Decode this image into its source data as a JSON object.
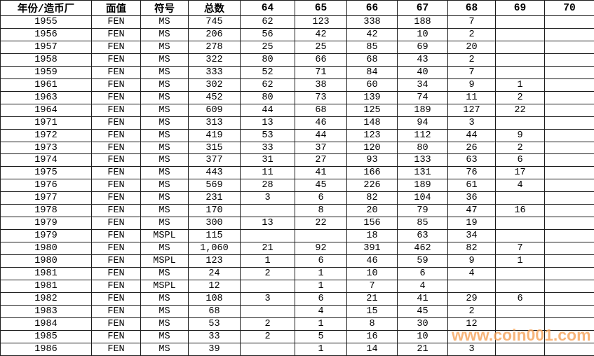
{
  "table": {
    "headers": [
      "年份/造币厂",
      "面值",
      "符号",
      "总数",
      "64",
      "65",
      "66",
      "67",
      "68",
      "69",
      "70"
    ],
    "rows": [
      [
        "1955",
        "FEN",
        "MS",
        "745",
        "62",
        "123",
        "338",
        "188",
        "7",
        "",
        ""
      ],
      [
        "1956",
        "FEN",
        "MS",
        "206",
        "56",
        "42",
        "42",
        "10",
        "2",
        "",
        ""
      ],
      [
        "1957",
        "FEN",
        "MS",
        "278",
        "25",
        "25",
        "85",
        "69",
        "20",
        "",
        ""
      ],
      [
        "1958",
        "FEN",
        "MS",
        "322",
        "80",
        "66",
        "68",
        "43",
        "2",
        "",
        ""
      ],
      [
        "1959",
        "FEN",
        "MS",
        "333",
        "52",
        "71",
        "84",
        "40",
        "7",
        "",
        ""
      ],
      [
        "1961",
        "FEN",
        "MS",
        "302",
        "62",
        "38",
        "60",
        "34",
        "9",
        "1",
        ""
      ],
      [
        "1963",
        "FEN",
        "MS",
        "452",
        "80",
        "73",
        "139",
        "74",
        "11",
        "2",
        ""
      ],
      [
        "1964",
        "FEN",
        "MS",
        "609",
        "44",
        "68",
        "125",
        "189",
        "127",
        "22",
        ""
      ],
      [
        "1971",
        "FEN",
        "MS",
        "313",
        "13",
        "46",
        "148",
        "94",
        "3",
        "",
        ""
      ],
      [
        "1972",
        "FEN",
        "MS",
        "419",
        "53",
        "44",
        "123",
        "112",
        "44",
        "9",
        ""
      ],
      [
        "1973",
        "FEN",
        "MS",
        "315",
        "33",
        "37",
        "120",
        "80",
        "26",
        "2",
        ""
      ],
      [
        "1974",
        "FEN",
        "MS",
        "377",
        "31",
        "27",
        "93",
        "133",
        "63",
        "6",
        ""
      ],
      [
        "1975",
        "FEN",
        "MS",
        "443",
        "11",
        "41",
        "166",
        "131",
        "76",
        "17",
        ""
      ],
      [
        "1976",
        "FEN",
        "MS",
        "569",
        "28",
        "45",
        "226",
        "189",
        "61",
        "4",
        ""
      ],
      [
        "1977",
        "FEN",
        "MS",
        "231",
        "3",
        "6",
        "82",
        "104",
        "36",
        "",
        ""
      ],
      [
        "1978",
        "FEN",
        "MS",
        "170",
        "",
        "8",
        "20",
        "79",
        "47",
        "16",
        ""
      ],
      [
        "1979",
        "FEN",
        "MS",
        "300",
        "13",
        "22",
        "156",
        "85",
        "19",
        "",
        ""
      ],
      [
        "1979",
        "FEN",
        "MSPL",
        "115",
        "",
        "",
        "18",
        "63",
        "34",
        "",
        ""
      ],
      [
        "1980",
        "FEN",
        "MS",
        "1,060",
        "21",
        "92",
        "391",
        "462",
        "82",
        "7",
        ""
      ],
      [
        "1980",
        "FEN",
        "MSPL",
        "123",
        "1",
        "6",
        "46",
        "59",
        "9",
        "1",
        ""
      ],
      [
        "1981",
        "FEN",
        "MS",
        "24",
        "2",
        "1",
        "10",
        "6",
        "4",
        "",
        ""
      ],
      [
        "1981",
        "FEN",
        "MSPL",
        "12",
        "",
        "1",
        "7",
        "4",
        "",
        "",
        ""
      ],
      [
        "1982",
        "FEN",
        "MS",
        "108",
        "3",
        "6",
        "21",
        "41",
        "29",
        "6",
        ""
      ],
      [
        "1983",
        "FEN",
        "MS",
        "68",
        "",
        "4",
        "15",
        "45",
        "2",
        "",
        ""
      ],
      [
        "1984",
        "FEN",
        "MS",
        "53",
        "2",
        "1",
        "8",
        "30",
        "12",
        "",
        ""
      ],
      [
        "1985",
        "FEN",
        "MS",
        "33",
        "2",
        "5",
        "16",
        "10",
        "",
        "",
        ""
      ],
      [
        "1986",
        "FEN",
        "MS",
        "39",
        "",
        "1",
        "14",
        "21",
        "3",
        "",
        ""
      ]
    ]
  },
  "watermark": {
    "text": "www.coin001.com",
    "color": "#F6A55E"
  }
}
